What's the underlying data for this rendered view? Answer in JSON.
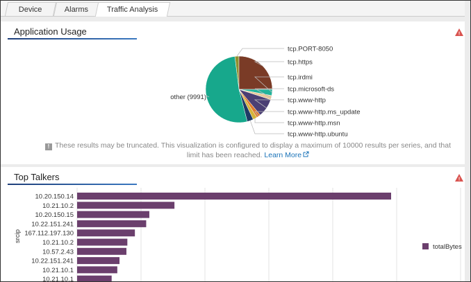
{
  "tabs": [
    {
      "label": "Device",
      "active": false
    },
    {
      "label": "Alarms",
      "active": false
    },
    {
      "label": "Traffic Analysis",
      "active": true
    }
  ],
  "application_usage": {
    "title": "Application Usage",
    "chart_data": {
      "type": "pie",
      "labels": [
        "tcp.PORT-8050",
        "tcp.https",
        "tcp.irdmi",
        "tcp.microsoft-ds",
        "tcp.www-http",
        "tcp.www-http.ms_update",
        "tcp.www-http.msn",
        "tcp.www-http.ubuntu",
        "other (9991)"
      ],
      "values": [
        384,
        4803,
        576,
        384,
        1729,
        384,
        384,
        576,
        9991
      ],
      "colors": [
        "#8f8f2e",
        "#7a3b26",
        "#22b39a",
        "#e8c99a",
        "#4b3f74",
        "#e07b2c",
        "#d4b43a",
        "#1f3b66",
        "#17a88c"
      ]
    },
    "notice": {
      "text": "These results may be truncated. This visualization is configured to display a maximum of 10000 results per series, and that limit has been reached.",
      "link": "Learn More"
    }
  },
  "top_talkers": {
    "title": "Top Talkers",
    "chart_data": {
      "type": "bar",
      "orientation": "horizontal",
      "y_label": "srcip",
      "categories": [
        "10.20.150.14",
        "10.21.10.2",
        "10.20.150.15",
        "10.22.151.241",
        "167.112.197.130",
        "10.21.10.2",
        "10.57.2.43",
        "10.22.151.241",
        "10.21.10.1",
        "10.21.10.1"
      ],
      "series": [
        {
          "name": "totalBytes",
          "color": "#6b3f6d",
          "values": [
            100,
            31,
            23,
            22,
            18.4,
            16,
            15.7,
            13.5,
            12.8,
            11
          ]
        }
      ],
      "grid": true
    }
  }
}
